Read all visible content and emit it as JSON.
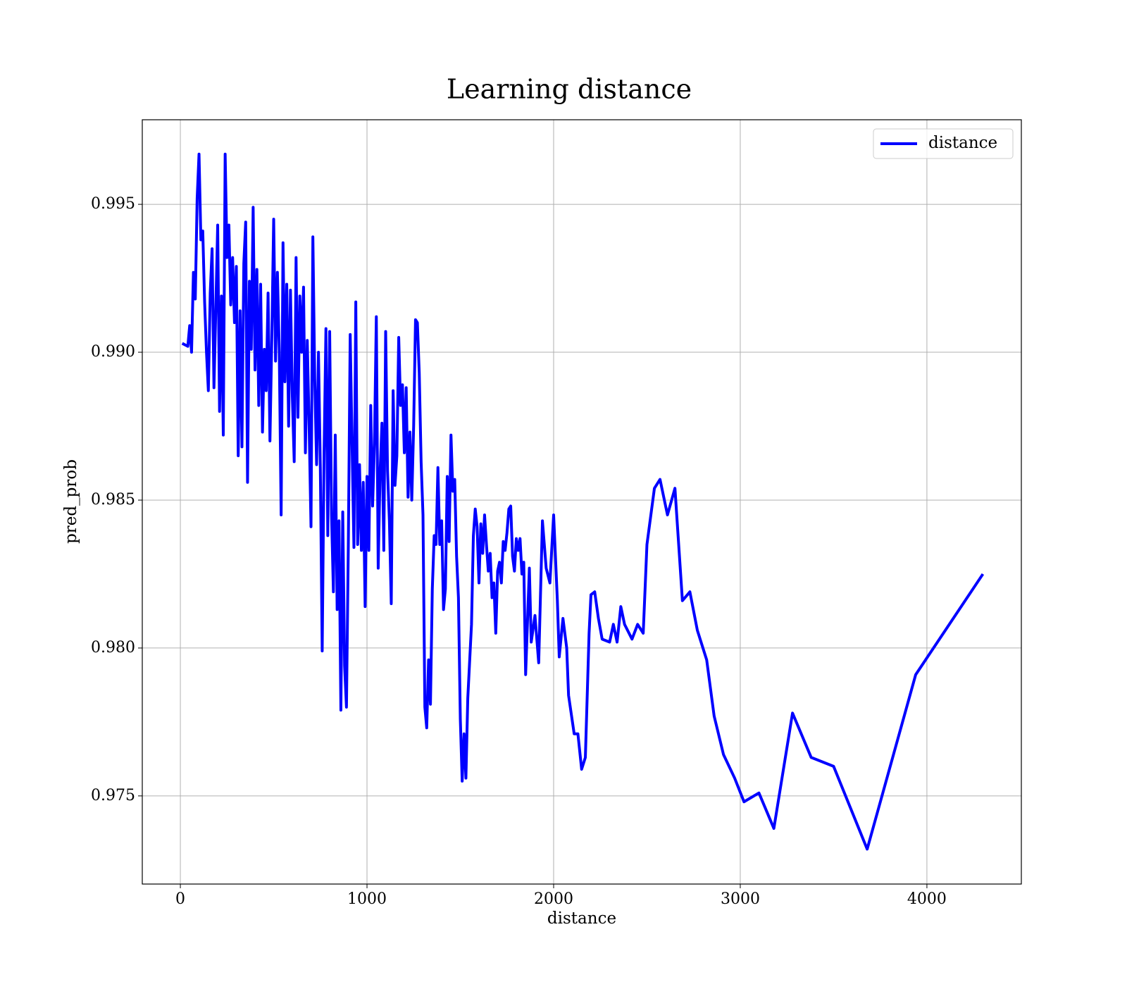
{
  "chart_data": {
    "type": "line",
    "title": "Learning distance",
    "x_label": "distance",
    "y_label": "pred_prob",
    "x": [
      10,
      40,
      50,
      60,
      70,
      80,
      90,
      100,
      110,
      120,
      130,
      140,
      150,
      160,
      170,
      180,
      190,
      200,
      210,
      220,
      230,
      240,
      250,
      260,
      270,
      280,
      290,
      300,
      310,
      320,
      330,
      340,
      350,
      360,
      370,
      380,
      390,
      400,
      410,
      420,
      430,
      440,
      450,
      460,
      470,
      480,
      490,
      500,
      510,
      520,
      530,
      540,
      550,
      560,
      570,
      580,
      590,
      600,
      610,
      620,
      630,
      640,
      650,
      660,
      670,
      680,
      690,
      700,
      710,
      720,
      730,
      740,
      750,
      760,
      770,
      780,
      790,
      800,
      810,
      820,
      830,
      840,
      850,
      860,
      870,
      880,
      890,
      900,
      910,
      920,
      930,
      940,
      950,
      960,
      970,
      980,
      990,
      1000,
      1010,
      1020,
      1030,
      1040,
      1050,
      1060,
      1070,
      1080,
      1090,
      1100,
      1110,
      1120,
      1130,
      1140,
      1150,
      1160,
      1170,
      1180,
      1190,
      1200,
      1210,
      1220,
      1230,
      1240,
      1250,
      1260,
      1270,
      1280,
      1290,
      1300,
      1310,
      1320,
      1330,
      1340,
      1350,
      1360,
      1370,
      1380,
      1390,
      1400,
      1410,
      1420,
      1430,
      1440,
      1450,
      1460,
      1470,
      1480,
      1490,
      1500,
      1510,
      1520,
      1530,
      1540,
      1560,
      1570,
      1580,
      1590,
      1600,
      1610,
      1620,
      1630,
      1640,
      1650,
      1660,
      1670,
      1680,
      1690,
      1700,
      1710,
      1720,
      1730,
      1740,
      1750,
      1760,
      1770,
      1780,
      1790,
      1800,
      1810,
      1820,
      1830,
      1840,
      1850,
      1870,
      1880,
      1900,
      1920,
      1940,
      1960,
      1980,
      2000,
      2020,
      2030,
      2050,
      2070,
      2080,
      2110,
      2130,
      2150,
      2170,
      2190,
      2200,
      2220,
      2240,
      2260,
      2300,
      2320,
      2340,
      2360,
      2380,
      2420,
      2450,
      2480,
      2500,
      2540,
      2570,
      2610,
      2650,
      2690,
      2730,
      2770,
      2820,
      2860,
      2910,
      2970,
      3020,
      3100,
      3180,
      3280,
      3380,
      3500,
      3680,
      3940,
      4300
    ],
    "series": [
      {
        "name": "distance",
        "color": "#0000ff",
        "values": [
          0.9903,
          0.9902,
          0.9909,
          0.99,
          0.9927,
          0.9918,
          0.9952,
          0.9967,
          0.9938,
          0.9941,
          0.9917,
          0.99,
          0.9887,
          0.992,
          0.9935,
          0.9888,
          0.9915,
          0.9943,
          0.988,
          0.9919,
          0.9872,
          0.9967,
          0.9932,
          0.9943,
          0.9916,
          0.9932,
          0.991,
          0.9929,
          0.9865,
          0.9914,
          0.9868,
          0.993,
          0.9944,
          0.9856,
          0.9924,
          0.9901,
          0.9949,
          0.9894,
          0.9928,
          0.9882,
          0.9923,
          0.9873,
          0.9901,
          0.9887,
          0.992,
          0.987,
          0.9905,
          0.9945,
          0.9897,
          0.9927,
          0.99,
          0.9845,
          0.9937,
          0.989,
          0.9923,
          0.9875,
          0.9921,
          0.9885,
          0.9863,
          0.9932,
          0.9878,
          0.9919,
          0.99,
          0.9922,
          0.9866,
          0.9904,
          0.9875,
          0.9841,
          0.9939,
          0.9891,
          0.9862,
          0.99,
          0.9861,
          0.9799,
          0.9866,
          0.9908,
          0.9838,
          0.9907,
          0.9845,
          0.9819,
          0.9872,
          0.9813,
          0.9843,
          0.9779,
          0.9846,
          0.9794,
          0.978,
          0.9835,
          0.9906,
          0.9869,
          0.9834,
          0.9917,
          0.9835,
          0.9862,
          0.9833,
          0.9856,
          0.9814,
          0.9858,
          0.9833,
          0.9882,
          0.9848,
          0.9869,
          0.9912,
          0.9827,
          0.9859,
          0.9876,
          0.9833,
          0.9907,
          0.986,
          0.9843,
          0.9815,
          0.9887,
          0.9855,
          0.9865,
          0.9905,
          0.9882,
          0.9889,
          0.9866,
          0.9888,
          0.9851,
          0.9873,
          0.985,
          0.9875,
          0.9911,
          0.991,
          0.9893,
          0.9863,
          0.9845,
          0.978,
          0.9773,
          0.9796,
          0.9781,
          0.982,
          0.9838,
          0.9835,
          0.9861,
          0.9835,
          0.9843,
          0.9813,
          0.982,
          0.9858,
          0.9836,
          0.9872,
          0.9853,
          0.9857,
          0.9831,
          0.9817,
          0.9776,
          0.9755,
          0.9771,
          0.9756,
          0.9783,
          0.9808,
          0.9838,
          0.9847,
          0.9841,
          0.9822,
          0.9842,
          0.9832,
          0.9845,
          0.9835,
          0.9826,
          0.9832,
          0.9817,
          0.9822,
          0.9805,
          0.9826,
          0.9829,
          0.9822,
          0.9836,
          0.9833,
          0.9839,
          0.9847,
          0.9848,
          0.9831,
          0.9826,
          0.9837,
          0.9833,
          0.9837,
          0.9825,
          0.9829,
          0.9791,
          0.9827,
          0.9802,
          0.9811,
          0.9795,
          0.9843,
          0.9827,
          0.9822,
          0.9845,
          0.9816,
          0.9797,
          0.981,
          0.98,
          0.9784,
          0.9771,
          0.9771,
          0.9759,
          0.9763,
          0.9805,
          0.9818,
          0.9819,
          0.981,
          0.9803,
          0.9802,
          0.9808,
          0.9802,
          0.9814,
          0.9808,
          0.9803,
          0.9808,
          0.9805,
          0.9835,
          0.9854,
          0.9857,
          0.9845,
          0.9854,
          0.9816,
          0.9819,
          0.9806,
          0.9796,
          0.9777,
          0.9764,
          0.9756,
          0.9748,
          0.9751,
          0.9739,
          0.9778,
          0.9763,
          0.976,
          0.9732,
          0.9791,
          0.9825
        ]
      }
    ],
    "xlim": [
      -204,
      4506
    ],
    "ylim": [
      0.97202,
      0.99786
    ],
    "xticks": [
      0,
      1000,
      2000,
      3000,
      4000
    ],
    "yticks": [
      0.975,
      {
        "value": 0.98,
        "label": "0.980"
      },
      0.985,
      {
        "value": 0.99,
        "label": "0.990"
      },
      0.995
    ],
    "grid": true,
    "legend": "upper right"
  }
}
